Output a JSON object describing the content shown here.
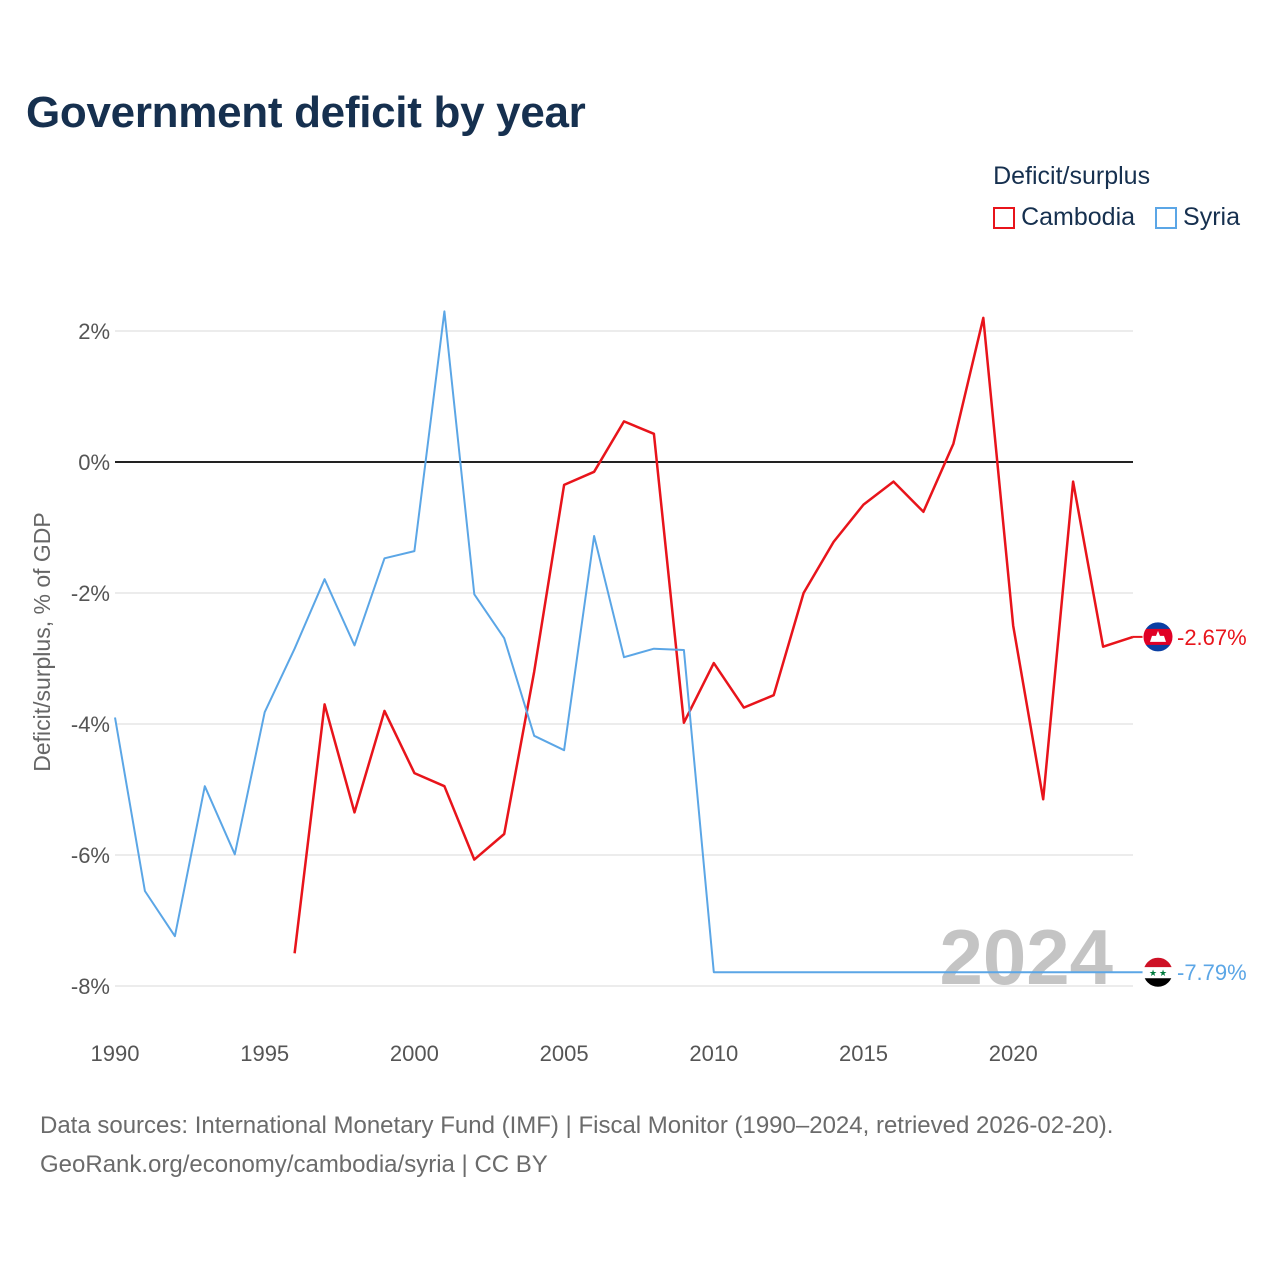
{
  "title": "Government deficit by year",
  "legend": {
    "title": "Deficit/surplus",
    "items": [
      {
        "label": "Cambodia",
        "color": "#e8141b"
      },
      {
        "label": "Syria",
        "color": "#5ba6e6"
      }
    ]
  },
  "footer": {
    "line1": "Data sources: International Monetary Fund (IMF) | Fiscal Monitor (1990–2024, retrieved 2026-02-20).",
    "line2": "GeoRank.org/economy/cambodia/syria | CC BY"
  },
  "chart_data": {
    "type": "line",
    "title": "Government deficit by year",
    "xlabel": "",
    "ylabel": "Deficit/surplus, % of GDP",
    "xlim": [
      1990,
      2024
    ],
    "ylim": [
      -8,
      2
    ],
    "y_ticks": [
      2,
      0,
      -2,
      -4,
      -6,
      -8
    ],
    "y_tick_labels": [
      "2%",
      "0%",
      "-2%",
      "-4%",
      "-6%",
      "-8%"
    ],
    "x_ticks": [
      1990,
      1995,
      2000,
      2005,
      2010,
      2015,
      2020
    ],
    "x_tick_labels": [
      "1990",
      "1995",
      "2000",
      "2005",
      "2010",
      "2015",
      "2020"
    ],
    "year_overlay": "2024",
    "series": [
      {
        "name": "Cambodia",
        "color": "#e8141b",
        "end_label": "-2.67%",
        "x": [
          1996,
          1997,
          1998,
          1999,
          2000,
          2001,
          2002,
          2003,
          2004,
          2005,
          2006,
          2007,
          2008,
          2009,
          2010,
          2011,
          2012,
          2013,
          2014,
          2015,
          2016,
          2017,
          2018,
          2019,
          2020,
          2021,
          2022,
          2023,
          2024
        ],
        "values": [
          -7.5,
          -3.7,
          -5.35,
          -3.8,
          -4.75,
          -4.95,
          -6.07,
          -5.68,
          -3.2,
          -0.35,
          -0.15,
          0.62,
          0.43,
          -3.98,
          -3.07,
          -3.75,
          -3.56,
          -2.0,
          -1.22,
          -0.65,
          -0.3,
          -0.76,
          0.28,
          2.2,
          -2.5,
          -5.15,
          -0.3,
          -2.82,
          -2.67
        ]
      },
      {
        "name": "Syria",
        "color": "#5ba6e6",
        "end_label": "-7.79%",
        "x": [
          1990,
          1991,
          1992,
          1993,
          1994,
          1995,
          1996,
          1997,
          1998,
          1999,
          2000,
          2001,
          2002,
          2003,
          2004,
          2005,
          2006,
          2007,
          2008,
          2009,
          2010,
          2011,
          2012,
          2013,
          2014,
          2015,
          2016,
          2017,
          2018,
          2019,
          2020,
          2021,
          2022,
          2023,
          2024
        ],
        "values": [
          -3.9,
          -6.55,
          -7.24,
          -4.95,
          -5.99,
          -3.82,
          -2.85,
          -1.79,
          -2.8,
          -1.47,
          -1.36,
          2.3,
          -2.02,
          -2.69,
          -4.18,
          -4.4,
          -1.13,
          -2.98,
          -2.85,
          -2.87,
          -7.79,
          -7.79,
          -7.79,
          -7.79,
          -7.79,
          -7.79,
          -7.79,
          -7.79,
          -7.79,
          -7.79,
          -7.79,
          -7.79,
          -7.79,
          -7.79,
          -7.79
        ]
      }
    ]
  }
}
